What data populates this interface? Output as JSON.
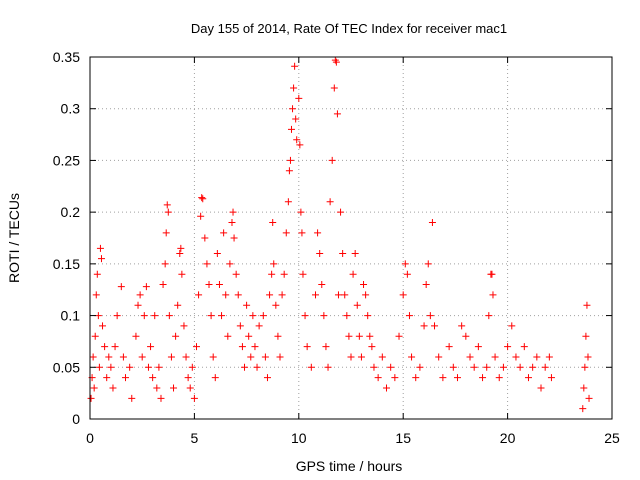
{
  "chart_data": {
    "type": "scatter",
    "title": "Day 155 of 2014, Rate Of TEC Index for receiver mac1",
    "xlabel": "GPS time / hours",
    "ylabel": "ROTI / TECUs",
    "xlim": [
      0,
      25
    ],
    "ylim": [
      0,
      0.35
    ],
    "xticks": [
      0,
      5,
      10,
      15,
      20,
      25
    ],
    "xtick_labels": [
      "0",
      "5",
      "10",
      "15",
      "20",
      "25"
    ],
    "yticks": [
      0,
      0.05,
      0.1,
      0.15,
      0.2,
      0.25,
      0.3,
      0.35
    ],
    "ytick_labels": [
      "0",
      "0.05",
      "0.1",
      "0.15",
      "0.2",
      "0.25",
      "0.3",
      "0.35"
    ],
    "grid": true,
    "marker": "+",
    "series": [
      {
        "name": "mac1 ROTI",
        "color": "#ff0000",
        "points": [
          [
            0.05,
            0.02
          ],
          [
            0.1,
            0.04
          ],
          [
            0.15,
            0.06
          ],
          [
            0.2,
            0.03
          ],
          [
            0.25,
            0.08
          ],
          [
            0.3,
            0.12
          ],
          [
            0.35,
            0.14
          ],
          [
            0.4,
            0.1
          ],
          [
            0.45,
            0.05
          ],
          [
            0.5,
            0.165
          ],
          [
            0.55,
            0.155
          ],
          [
            0.6,
            0.09
          ],
          [
            0.7,
            0.07
          ],
          [
            0.8,
            0.04
          ],
          [
            0.9,
            0.06
          ],
          [
            1.0,
            0.05
          ],
          [
            1.1,
            0.03
          ],
          [
            1.2,
            0.07
          ],
          [
            1.3,
            0.1
          ],
          [
            1.5,
            0.128
          ],
          [
            1.6,
            0.06
          ],
          [
            1.7,
            0.04
          ],
          [
            1.9,
            0.05
          ],
          [
            2.0,
            0.02
          ],
          [
            2.2,
            0.08
          ],
          [
            2.3,
            0.11
          ],
          [
            2.4,
            0.12
          ],
          [
            2.5,
            0.06
          ],
          [
            2.6,
            0.1
          ],
          [
            2.7,
            0.128
          ],
          [
            2.8,
            0.05
          ],
          [
            2.9,
            0.07
          ],
          [
            3.0,
            0.04
          ],
          [
            3.1,
            0.1
          ],
          [
            3.2,
            0.03
          ],
          [
            3.3,
            0.05
          ],
          [
            3.4,
            0.02
          ],
          [
            3.5,
            0.13
          ],
          [
            3.6,
            0.15
          ],
          [
            3.65,
            0.18
          ],
          [
            3.7,
            0.207
          ],
          [
            3.75,
            0.2
          ],
          [
            3.8,
            0.1
          ],
          [
            3.9,
            0.06
          ],
          [
            4.0,
            0.03
          ],
          [
            4.1,
            0.08
          ],
          [
            4.2,
            0.11
          ],
          [
            4.3,
            0.16
          ],
          [
            4.35,
            0.165
          ],
          [
            4.4,
            0.14
          ],
          [
            4.5,
            0.09
          ],
          [
            4.6,
            0.06
          ],
          [
            4.7,
            0.04
          ],
          [
            4.8,
            0.03
          ],
          [
            4.9,
            0.05
          ],
          [
            5.0,
            0.02
          ],
          [
            5.1,
            0.07
          ],
          [
            5.2,
            0.12
          ],
          [
            5.3,
            0.196
          ],
          [
            5.35,
            0.214
          ],
          [
            5.4,
            0.213
          ],
          [
            5.5,
            0.175
          ],
          [
            5.6,
            0.15
          ],
          [
            5.7,
            0.13
          ],
          [
            5.8,
            0.1
          ],
          [
            5.9,
            0.06
          ],
          [
            6.0,
            0.04
          ],
          [
            6.1,
            0.16
          ],
          [
            6.2,
            0.13
          ],
          [
            6.3,
            0.1
          ],
          [
            6.4,
            0.18
          ],
          [
            6.5,
            0.12
          ],
          [
            6.6,
            0.08
          ],
          [
            6.7,
            0.15
          ],
          [
            6.8,
            0.19
          ],
          [
            6.85,
            0.2
          ],
          [
            6.9,
            0.175
          ],
          [
            7.0,
            0.14
          ],
          [
            7.1,
            0.12
          ],
          [
            7.2,
            0.09
          ],
          [
            7.3,
            0.07
          ],
          [
            7.4,
            0.05
          ],
          [
            7.5,
            0.11
          ],
          [
            7.6,
            0.08
          ],
          [
            7.7,
            0.06
          ],
          [
            7.8,
            0.1
          ],
          [
            7.9,
            0.07
          ],
          [
            8.0,
            0.05
          ],
          [
            8.1,
            0.09
          ],
          [
            8.3,
            0.1
          ],
          [
            8.4,
            0.06
          ],
          [
            8.5,
            0.04
          ],
          [
            8.6,
            0.12
          ],
          [
            8.7,
            0.14
          ],
          [
            8.75,
            0.19
          ],
          [
            8.8,
            0.15
          ],
          [
            8.9,
            0.11
          ],
          [
            9.0,
            0.08
          ],
          [
            9.1,
            0.06
          ],
          [
            9.2,
            0.12
          ],
          [
            9.3,
            0.14
          ],
          [
            9.4,
            0.18
          ],
          [
            9.5,
            0.21
          ],
          [
            9.55,
            0.24
          ],
          [
            9.6,
            0.25
          ],
          [
            9.65,
            0.28
          ],
          [
            9.7,
            0.3
          ],
          [
            9.75,
            0.32
          ],
          [
            9.8,
            0.341
          ],
          [
            9.85,
            0.29
          ],
          [
            9.9,
            0.27
          ],
          [
            10.0,
            0.31
          ],
          [
            10.05,
            0.265
          ],
          [
            10.1,
            0.2
          ],
          [
            10.15,
            0.18
          ],
          [
            10.2,
            0.14
          ],
          [
            10.3,
            0.1
          ],
          [
            10.4,
            0.07
          ],
          [
            10.6,
            0.05
          ],
          [
            10.8,
            0.12
          ],
          [
            10.9,
            0.18
          ],
          [
            11.0,
            0.16
          ],
          [
            11.1,
            0.13
          ],
          [
            11.2,
            0.1
          ],
          [
            11.3,
            0.07
          ],
          [
            11.4,
            0.05
          ],
          [
            11.5,
            0.21
          ],
          [
            11.6,
            0.25
          ],
          [
            11.7,
            0.32
          ],
          [
            11.75,
            0.347
          ],
          [
            11.8,
            0.345
          ],
          [
            11.85,
            0.295
          ],
          [
            11.9,
            0.12
          ],
          [
            12.0,
            0.2
          ],
          [
            12.1,
            0.16
          ],
          [
            12.2,
            0.12
          ],
          [
            12.3,
            0.1
          ],
          [
            12.4,
            0.08
          ],
          [
            12.5,
            0.06
          ],
          [
            12.6,
            0.14
          ],
          [
            12.7,
            0.16
          ],
          [
            12.8,
            0.11
          ],
          [
            12.9,
            0.08
          ],
          [
            13.0,
            0.06
          ],
          [
            13.1,
            0.13
          ],
          [
            13.2,
            0.12
          ],
          [
            13.3,
            0.1
          ],
          [
            13.4,
            0.08
          ],
          [
            13.5,
            0.07
          ],
          [
            13.6,
            0.05
          ],
          [
            13.8,
            0.04
          ],
          [
            14.0,
            0.06
          ],
          [
            14.2,
            0.03
          ],
          [
            14.4,
            0.05
          ],
          [
            14.6,
            0.04
          ],
          [
            14.8,
            0.08
          ],
          [
            15.0,
            0.12
          ],
          [
            15.1,
            0.15
          ],
          [
            15.2,
            0.14
          ],
          [
            15.3,
            0.1
          ],
          [
            15.4,
            0.06
          ],
          [
            15.6,
            0.04
          ],
          [
            15.8,
            0.05
          ],
          [
            16.0,
            0.09
          ],
          [
            16.1,
            0.13
          ],
          [
            16.2,
            0.15
          ],
          [
            16.3,
            0.1
          ],
          [
            16.4,
            0.19
          ],
          [
            16.5,
            0.09
          ],
          [
            16.7,
            0.06
          ],
          [
            16.9,
            0.04
          ],
          [
            17.2,
            0.07
          ],
          [
            17.4,
            0.05
          ],
          [
            17.6,
            0.04
          ],
          [
            17.8,
            0.09
          ],
          [
            18.0,
            0.08
          ],
          [
            18.2,
            0.06
          ],
          [
            18.4,
            0.05
          ],
          [
            18.6,
            0.07
          ],
          [
            18.8,
            0.04
          ],
          [
            19.0,
            0.05
          ],
          [
            19.1,
            0.1
          ],
          [
            19.2,
            0.14
          ],
          [
            19.25,
            0.14
          ],
          [
            19.3,
            0.12
          ],
          [
            19.4,
            0.06
          ],
          [
            19.6,
            0.04
          ],
          [
            19.8,
            0.05
          ],
          [
            20.0,
            0.07
          ],
          [
            20.2,
            0.09
          ],
          [
            20.4,
            0.06
          ],
          [
            20.6,
            0.05
          ],
          [
            20.8,
            0.07
          ],
          [
            21.0,
            0.04
          ],
          [
            21.2,
            0.05
          ],
          [
            21.4,
            0.06
          ],
          [
            21.6,
            0.03
          ],
          [
            21.8,
            0.05
          ],
          [
            22.0,
            0.06
          ],
          [
            22.1,
            0.04
          ],
          [
            23.6,
            0.01
          ],
          [
            23.65,
            0.03
          ],
          [
            23.7,
            0.05
          ],
          [
            23.75,
            0.08
          ],
          [
            23.8,
            0.11
          ],
          [
            23.85,
            0.06
          ],
          [
            23.9,
            0.02
          ]
        ]
      }
    ]
  }
}
